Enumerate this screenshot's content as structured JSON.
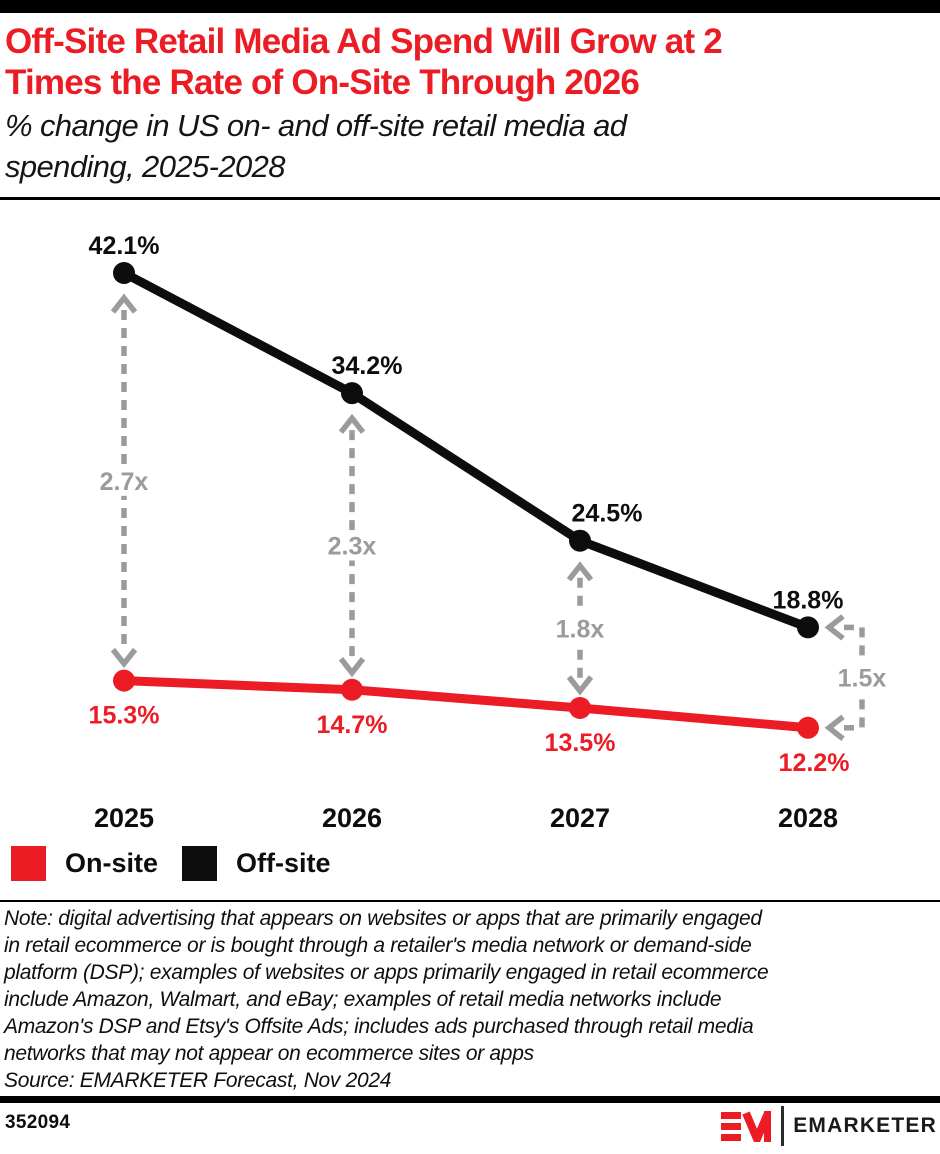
{
  "colors": {
    "accent_red": "#ec1c24",
    "annotation_gray": "#9b9b9b",
    "series_black": "#0d0d0d"
  },
  "header": {
    "title_lines": [
      "Off-Site Retail Media Ad Spend Will Grow at 2",
      "Times the Rate of On-Site Through 2026"
    ],
    "subtitle_lines": [
      "% change in US on- and off-site retail media ad",
      "spending, 2025-2028"
    ]
  },
  "chart_data": {
    "type": "line",
    "categories": [
      "2025",
      "2026",
      "2027",
      "2028"
    ],
    "series": [
      {
        "name": "Off-site",
        "color": "#0d0d0d",
        "values": [
          42.1,
          34.2,
          24.5,
          18.8
        ],
        "labels": [
          "42.1%",
          "34.2%",
          "24.5%",
          "18.8%"
        ]
      },
      {
        "name": "On-site",
        "color": "#ec1c24",
        "values": [
          15.3,
          14.7,
          13.5,
          12.2
        ],
        "labels": [
          "15.3%",
          "14.7%",
          "13.5%",
          "12.2%"
        ]
      }
    ],
    "annotations": [
      {
        "label": "2.7x",
        "category": "2025",
        "style": "vertical-double-arrow"
      },
      {
        "label": "2.3x",
        "category": "2026",
        "style": "vertical-double-arrow"
      },
      {
        "label": "1.8x",
        "category": "2027",
        "style": "vertical-double-arrow"
      },
      {
        "label": "1.5x",
        "category": "2028",
        "style": "elbow-bracket"
      }
    ],
    "annotation_color": "#9b9b9b",
    "ylim": [
      12.2,
      42.1
    ],
    "grid": false,
    "legend_position": "bottom-left",
    "title": "Off-Site Retail Media Ad Spend Will Grow at 2 Times the Rate of On-Site Through 2026",
    "xlabel": "",
    "ylabel": "% change"
  },
  "legend": [
    {
      "label": "On-site",
      "color": "#ec1c24"
    },
    {
      "label": "Off-site",
      "color": "#0d0d0d"
    }
  ],
  "note": {
    "lines": [
      "Note: digital advertising that appears on websites or apps that are primarily engaged",
      "in retail ecommerce or is bought through a retailer's media network or demand-side",
      "platform (DSP); examples of websites or apps primarily engaged in retail ecommerce",
      "include Amazon, Walmart, and eBay; examples of retail media networks include",
      "Amazon's DSP and Etsy's Offsite Ads; includes ads purchased through retail media",
      "networks that may not appear on ecommerce sites or apps"
    ],
    "source": "Source: EMARKETER Forecast, Nov 2024"
  },
  "footer": {
    "chart_id": "352094",
    "brand": "EMARKETER"
  }
}
